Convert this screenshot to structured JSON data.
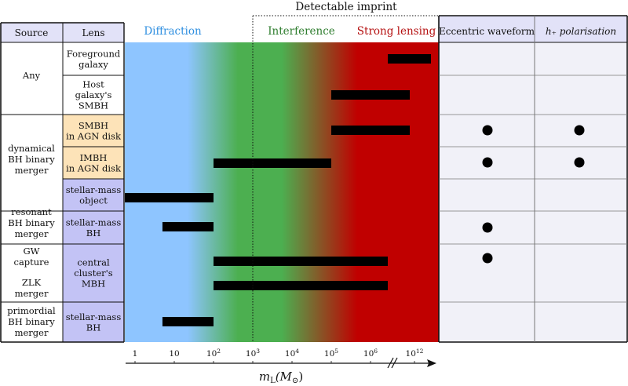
{
  "title": "Detectable imprint",
  "headers": {
    "source": "Source",
    "lens": "Lens",
    "diffraction": "Diffraction",
    "interference": "Interference",
    "strong_lensing": "Strong lensing",
    "eccentric": "Eccentric waveform",
    "polarisation": "h₊ polarisation"
  },
  "colors": {
    "diffraction": "#2f8fe0",
    "interference": "#2e7d2e",
    "strong_lensing": "#b51010",
    "band_blue": "#8ec5ff",
    "band_green": "#4caf50",
    "band_red": "#c00000",
    "lens_orange": "#fde3b8",
    "lens_purple": "#c3c3f5",
    "header_purple": "#e2e2f8",
    "right_cells": "#f1f1f8"
  },
  "sources": [
    {
      "lines": [
        "Any"
      ]
    },
    {
      "lines": [
        "dynamical",
        "BH binary",
        "merger"
      ]
    },
    {
      "lines": [
        "resonant",
        "BH binary",
        "merger"
      ]
    },
    {
      "lines": [
        "GW",
        "capture"
      ]
    },
    {
      "lines": [
        "ZLK",
        "merger"
      ]
    },
    {
      "lines": [
        "primordial",
        "BH binary",
        "merger"
      ]
    }
  ],
  "lenses": [
    {
      "lines": [
        "Foreground",
        "galaxy"
      ],
      "fill": "white"
    },
    {
      "lines": [
        "Host",
        "galaxy's",
        "SMBH"
      ],
      "fill": "white"
    },
    {
      "lines": [
        "SMBH",
        "in AGN disk"
      ],
      "fill": "orange"
    },
    {
      "lines": [
        "IMBH",
        "in AGN disk"
      ],
      "fill": "orange"
    },
    {
      "lines": [
        "stellar-mass",
        "object"
      ],
      "fill": "purple"
    },
    {
      "lines": [
        "stellar-mass",
        "BH"
      ],
      "fill": "purple"
    },
    {
      "lines": [
        "central",
        "cluster's",
        "MBH"
      ],
      "fill": "purple"
    },
    {
      "lines": [
        "stellar-mass",
        "BH"
      ],
      "fill": "purple"
    }
  ],
  "ranges": [
    {
      "name": "foreground-galaxy",
      "from": 1000000.0,
      "to": 1000000000000.0,
      "to_label": "10^12"
    },
    {
      "name": "host-galaxy-smbh",
      "from": 100000,
      "to": 10000000.0
    },
    {
      "name": "smbh-agn-disk",
      "from": 100000,
      "to": 10000000.0
    },
    {
      "name": "imbh-agn-disk",
      "from": 100,
      "to": 100000
    },
    {
      "name": "stellar-mass-object",
      "from": 0.1,
      "to": 100
    },
    {
      "name": "resonant-stellar-bh",
      "from": 5,
      "to": 100
    },
    {
      "name": "gw-capture-mbh",
      "from": 100,
      "to": 3000000
    },
    {
      "name": "zlk-mbh",
      "from": 100,
      "to": 3000000
    },
    {
      "name": "primordial-stellar-bh",
      "from": 5,
      "to": 100
    }
  ],
  "eccentric_marks": [
    "smbh-agn-disk",
    "imbh-agn-disk",
    "resonant-stellar-bh",
    "gw-capture-mbh"
  ],
  "polarisation_marks": [
    "smbh-agn-disk",
    "imbh-agn-disk"
  ],
  "detectable_threshold": 1000,
  "axis": {
    "label_main": "m",
    "label_sub": "L",
    "label_unit": "(M",
    "label_sun": "⊙",
    "label_close": ")",
    "ticks": [
      {
        "value": 1,
        "base": "1",
        "exp": ""
      },
      {
        "value": 10,
        "base": "10",
        "exp": ""
      },
      {
        "value": 100,
        "base": "10",
        "exp": "2"
      },
      {
        "value": 1000,
        "base": "10",
        "exp": "3"
      },
      {
        "value": 10000,
        "base": "10",
        "exp": "4"
      },
      {
        "value": 100000,
        "base": "10",
        "exp": "5"
      },
      {
        "value": 1000000,
        "base": "10",
        "exp": "6"
      },
      {
        "value": 1000000000000.0,
        "base": "10",
        "exp": "12"
      }
    ],
    "axis_break": true
  }
}
